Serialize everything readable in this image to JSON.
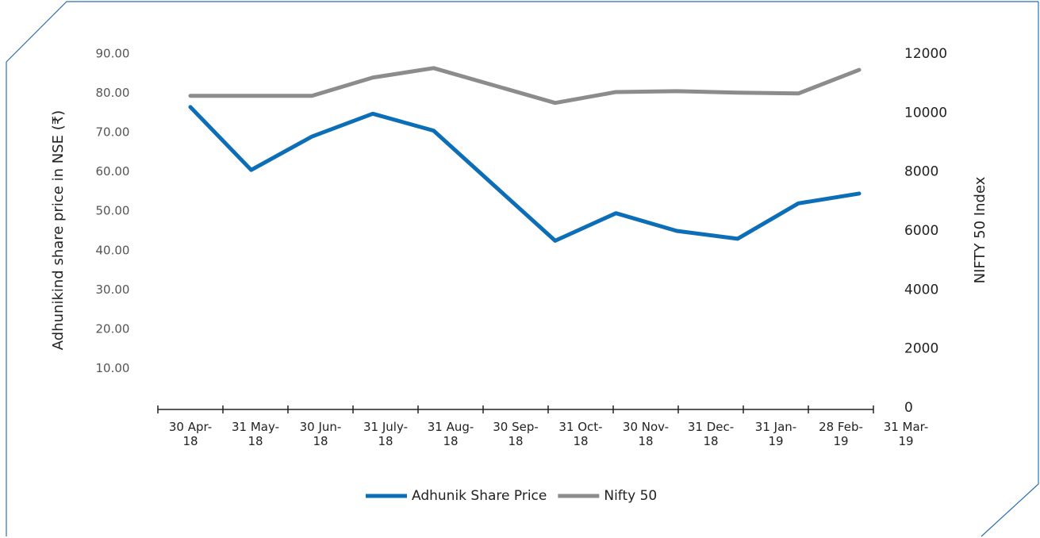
{
  "chart_data": {
    "type": "line",
    "categories": [
      "30 Apr-18",
      "31 May-18",
      "30 Jun-18",
      "31 July-18",
      "31 Aug-18",
      "30 Sep-18",
      "31 Oct-18",
      "30 Nov-18",
      "31 Dec-18",
      "31 Jan-19",
      "28 Feb-19",
      "31 Mar-19"
    ],
    "series": [
      {
        "name": "Adhunik Share Price",
        "color": "#0d6eb8",
        "values": [
          76.5,
          60.5,
          69,
          74.8,
          70.5,
          56.5,
          42.5,
          49.5,
          45,
          43,
          52,
          54.5
        ]
      },
      {
        "name": "Nifty 50",
        "color": "#8c8c8c",
        "axis": "y2",
        "values": [
          10580,
          10580,
          10580,
          11200,
          11520,
          10930,
          10340,
          10710,
          10740,
          10690,
          10660,
          11460
        ]
      }
    ],
    "ylabel": "Adhunikind share price in NSE (₹)",
    "y2label": "NIFTY 50 Index",
    "ylim": [
      0,
      90
    ],
    "yticks": [
      {
        "value": 10,
        "label": "10.00"
      },
      {
        "value": 20,
        "label": "20.00"
      },
      {
        "value": 30,
        "label": "30.00"
      },
      {
        "value": 40,
        "label": "40.00"
      },
      {
        "value": 50,
        "label": "50.00"
      },
      {
        "value": 60,
        "label": "60.00"
      },
      {
        "value": 70,
        "label": "70.00"
      },
      {
        "value": 80,
        "label": "80.00"
      },
      {
        "value": 90,
        "label": "90.00"
      }
    ],
    "y2lim": [
      0,
      12000
    ],
    "y2ticks": [
      0,
      2000,
      4000,
      6000,
      8000,
      10000,
      12000
    ],
    "legend": "bottom"
  }
}
